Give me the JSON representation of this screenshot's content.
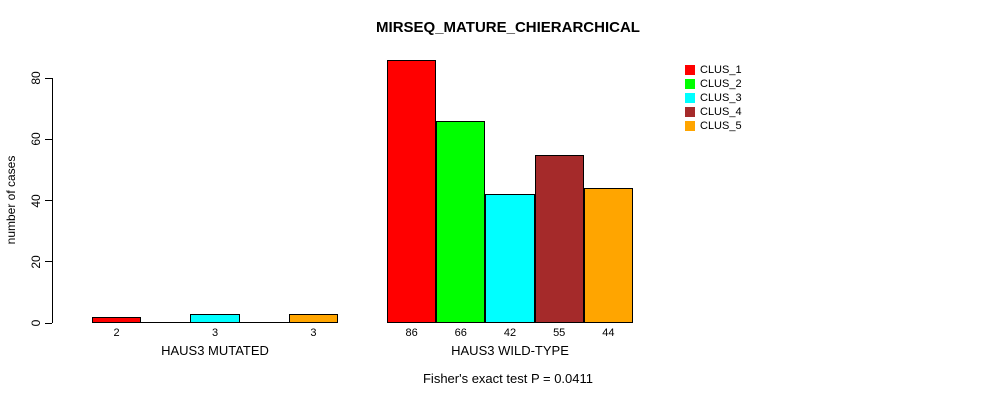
{
  "title": "MIRSEQ_MATURE_CHIERARCHICAL",
  "footnote": "Fisher's exact test P = 0.0411",
  "y_axis": {
    "label": "number of cases",
    "ticks": [
      0,
      20,
      40,
      60,
      80
    ],
    "max": 80
  },
  "legend": {
    "items": [
      {
        "label": "CLUS_1",
        "color": "#FF0000"
      },
      {
        "label": "CLUS_2",
        "color": "#00FF00"
      },
      {
        "label": "CLUS_3",
        "color": "#00FFFF"
      },
      {
        "label": "CLUS_4",
        "color": "#A52A2A"
      },
      {
        "label": "CLUS_5",
        "color": "#FFA500"
      }
    ]
  },
  "groups": [
    {
      "label": "HAUS3 MUTATED",
      "values": [
        2,
        0,
        3,
        0,
        3
      ],
      "bar_labels": [
        "2",
        "",
        "3",
        "",
        "3"
      ]
    },
    {
      "label": "HAUS3 WILD-TYPE",
      "values": [
        86,
        66,
        42,
        55,
        44
      ],
      "bar_labels": [
        "86",
        "66",
        "42",
        "55",
        "44"
      ]
    }
  ],
  "chart_data": {
    "type": "bar",
    "title": "MIRSEQ_MATURE_CHIERARCHICAL",
    "xlabel": "",
    "ylabel": "number of cases",
    "ylim": [
      0,
      86
    ],
    "y_ticks": [
      0,
      20,
      40,
      60,
      80
    ],
    "grid": false,
    "legend_position": "top-right",
    "categories": [
      "HAUS3 MUTATED",
      "HAUS3 WILD-TYPE"
    ],
    "series": [
      {
        "name": "CLUS_1",
        "color": "#FF0000",
        "values": [
          2,
          86
        ]
      },
      {
        "name": "CLUS_2",
        "color": "#00FF00",
        "values": [
          0,
          66
        ]
      },
      {
        "name": "CLUS_3",
        "color": "#00FFFF",
        "values": [
          3,
          42
        ]
      },
      {
        "name": "CLUS_4",
        "color": "#A52A2A",
        "values": [
          0,
          55
        ]
      },
      {
        "name": "CLUS_5",
        "color": "#FFA500",
        "values": [
          3,
          44
        ]
      }
    ],
    "bar_value_labels": true,
    "annotation": "Fisher's exact test P = 0.0411"
  }
}
